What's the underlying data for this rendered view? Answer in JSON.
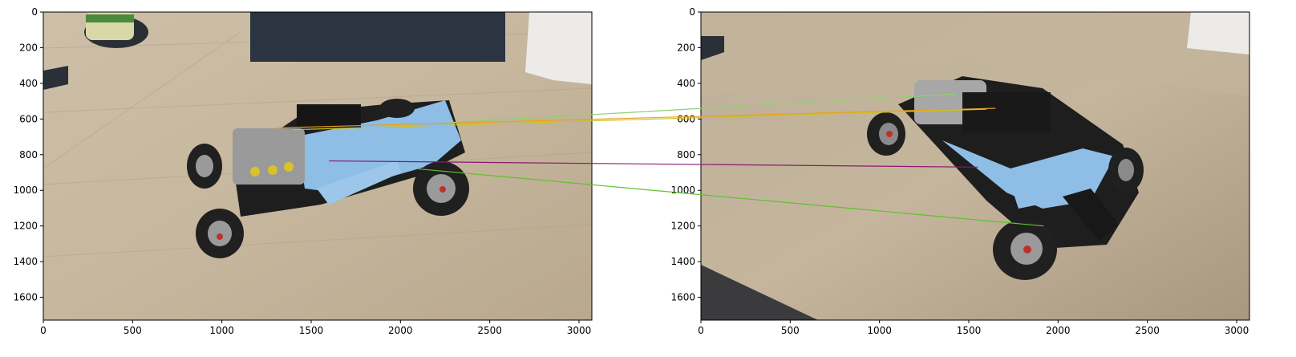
{
  "chart_data": {
    "type": "image-match-visualization",
    "panels": [
      {
        "name": "left-image",
        "x_ticks": [
          0,
          500,
          1000,
          1500,
          2000,
          2500,
          3000
        ],
        "y_ticks": [
          0,
          200,
          400,
          600,
          800,
          1000,
          1200,
          1400,
          1600
        ],
        "xlim": [
          0,
          3072
        ],
        "ylim": [
          1728,
          0
        ]
      },
      {
        "name": "right-image",
        "x_ticks": [
          0,
          500,
          1000,
          1500,
          2000,
          2500,
          3000
        ],
        "y_ticks": [
          0,
          200,
          400,
          600,
          800,
          1000,
          1200,
          1400,
          1600
        ],
        "xlim": [
          0,
          3072
        ],
        "ylim": [
          1728,
          0
        ]
      }
    ],
    "matches": [
      {
        "left": [
          2280,
          620
        ],
        "right": [
          1430,
          460
        ],
        "color": "#90d070"
      },
      {
        "left": [
          1300,
          650
        ],
        "right": [
          1650,
          540
        ],
        "color": "#e8a020"
      },
      {
        "left": [
          1400,
          660
        ],
        "right": [
          1600,
          545
        ],
        "color": "#d0c020"
      },
      {
        "left": [
          1600,
          835
        ],
        "right": [
          1550,
          870
        ],
        "color": "#8b1a6b"
      },
      {
        "left": [
          2100,
          880
        ],
        "right": [
          1920,
          1200
        ],
        "color": "#60c030"
      }
    ]
  },
  "colors": {
    "table_light": "#c8b9a1",
    "table_dark": "#a8977f",
    "car_blue": "#8ebde6",
    "car_black": "#202020",
    "wheel_grey": "#9a9a9a",
    "box_dark": "#2b3440"
  }
}
